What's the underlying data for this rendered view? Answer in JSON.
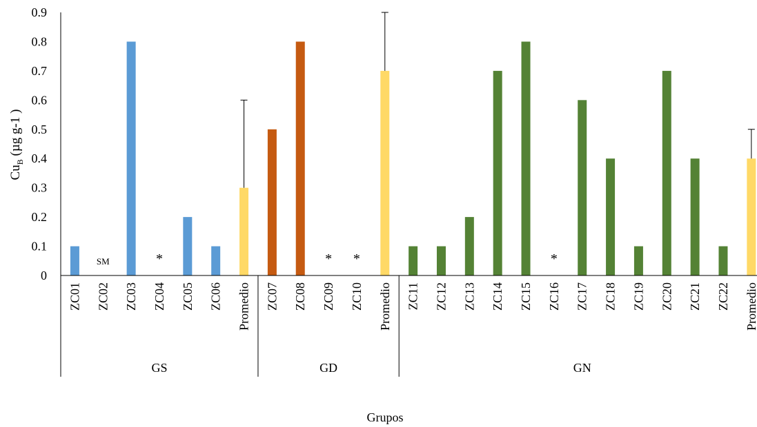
{
  "chart_data": {
    "type": "bar",
    "title": "",
    "ylabel_main": "Cu",
    "ylabel_sub": "B",
    "ylabel_rest": " (µg g-1 )",
    "xlabel": "Grupos",
    "ylim": [
      0,
      0.9
    ],
    "yticks": [
      "0",
      "0.1",
      "0.2",
      "0.3",
      "0.4",
      "0.5",
      "0.6",
      "0.7",
      "0.8",
      "0.9"
    ],
    "groups": [
      {
        "name": "GS",
        "color": "#5B9BD5",
        "categories": [
          {
            "label": "ZC01",
            "value": 0.1
          },
          {
            "label": "ZC02",
            "value": null,
            "marker": "SM"
          },
          {
            "label": "ZC03",
            "value": 0.8
          },
          {
            "label": "ZC04",
            "value": null,
            "marker": "*"
          },
          {
            "label": "ZC05",
            "value": 0.2
          },
          {
            "label": "ZC06",
            "value": 0.1
          },
          {
            "label": "Promedio",
            "value": 0.3,
            "error": 0.3,
            "average": true
          }
        ]
      },
      {
        "name": "GD",
        "color": "#C55A11",
        "categories": [
          {
            "label": "ZC07",
            "value": 0.5
          },
          {
            "label": "ZC08",
            "value": 0.8
          },
          {
            "label": "ZC09",
            "value": null,
            "marker": "*"
          },
          {
            "label": "ZC10",
            "value": null,
            "marker": "*"
          },
          {
            "label": "Promedio",
            "value": 0.7,
            "error": 0.2,
            "average": true
          }
        ]
      },
      {
        "name": "GN",
        "color": "#548235",
        "categories": [
          {
            "label": "ZC11",
            "value": 0.1
          },
          {
            "label": "ZC12",
            "value": 0.1
          },
          {
            "label": "ZC13",
            "value": 0.2
          },
          {
            "label": "ZC14",
            "value": 0.7
          },
          {
            "label": "ZC15",
            "value": 0.8
          },
          {
            "label": "ZC16",
            "value": null,
            "marker": "*"
          },
          {
            "label": "ZC17",
            "value": 0.6
          },
          {
            "label": "ZC18",
            "value": 0.4
          },
          {
            "label": "ZC19",
            "value": 0.1
          },
          {
            "label": "ZC20",
            "value": 0.7
          },
          {
            "label": "ZC21",
            "value": 0.4
          },
          {
            "label": "ZC22",
            "value": 0.1
          },
          {
            "label": "Promedio",
            "value": 0.4,
            "error": 0.1,
            "average": true
          }
        ]
      }
    ],
    "average_color": "#FFD966",
    "grid": false,
    "legend": "none"
  }
}
